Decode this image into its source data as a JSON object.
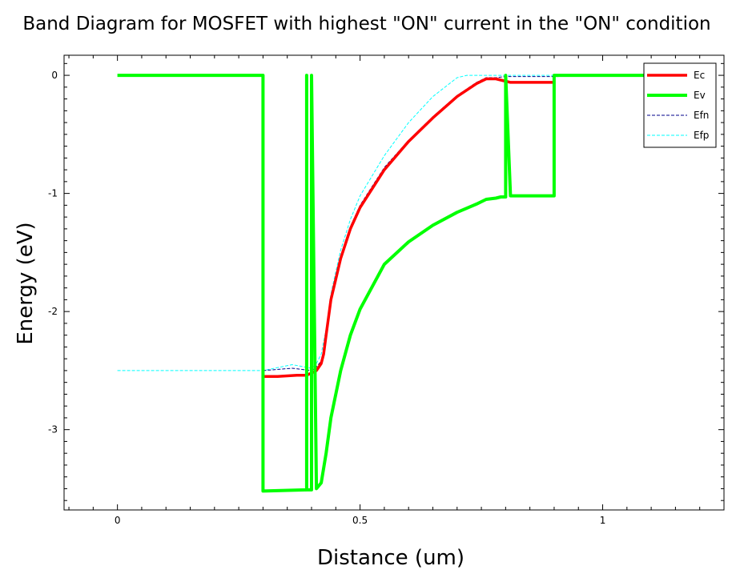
{
  "chart_data": {
    "type": "line",
    "title": "Band Diagram for MOSFET with highest \"ON\" current in the \"ON\" condition",
    "xlabel": "Distance (um)",
    "ylabel": "Energy (eV)",
    "xlim": [
      -0.11,
      1.25
    ],
    "ylim": [
      -3.68,
      0.17
    ],
    "xticks": [
      0,
      0.5,
      1
    ],
    "xtick_labels": [
      "0",
      "0.5",
      "1"
    ],
    "yticks": [
      0,
      -1,
      -2,
      -3
    ],
    "ytick_labels": [
      "0",
      "-1",
      "-2",
      "-3"
    ],
    "grid": false,
    "legend_position": "top-right",
    "series": [
      {
        "name": "Ec",
        "color": "#ff0000",
        "style": "solid",
        "x": [
          0.3,
          0.33,
          0.37,
          0.39,
          0.41,
          0.42,
          0.425,
          0.43,
          0.44,
          0.46,
          0.48,
          0.5,
          0.55,
          0.6,
          0.65,
          0.7,
          0.74,
          0.76,
          0.78,
          0.8,
          0.81,
          0.85,
          0.9
        ],
        "y": [
          -2.55,
          -2.55,
          -2.54,
          -2.54,
          -2.5,
          -2.44,
          -2.36,
          -2.2,
          -1.9,
          -1.55,
          -1.3,
          -1.12,
          -0.8,
          -0.56,
          -0.36,
          -0.18,
          -0.07,
          -0.03,
          -0.03,
          -0.05,
          -0.06,
          -0.06,
          -0.06
        ]
      },
      {
        "name": "Ev",
        "color": "#00ff00",
        "style": "solid",
        "x": [
          0,
          0.3,
          0.3,
          0.39,
          0.39,
          0.39,
          0.4,
          0.4,
          0.41,
          0.42,
          0.43,
          0.44,
          0.46,
          0.48,
          0.5,
          0.55,
          0.6,
          0.65,
          0.7,
          0.74,
          0.76,
          0.78,
          0.79,
          0.8,
          0.8,
          0.81,
          0.81,
          0.81,
          0.9,
          0.9,
          1.1
        ],
        "y": [
          0,
          0,
          -3.52,
          -3.51,
          0,
          -3.51,
          -3.51,
          0,
          -3.5,
          -3.45,
          -3.2,
          -2.9,
          -2.5,
          -2.2,
          -1.98,
          -1.6,
          -1.41,
          -1.27,
          -1.16,
          -1.09,
          -1.05,
          -1.04,
          -1.03,
          -1.03,
          0,
          -1.02,
          -1.02,
          -1.02,
          -1.02,
          0,
          0
        ]
      },
      {
        "name": "Efn",
        "color": "#00008b",
        "style": "dashed",
        "x": [
          0.3,
          0.36,
          0.4,
          0.41,
          0.42,
          0.425,
          0.43,
          0.44,
          0.46,
          0.48,
          0.5,
          0.55,
          0.6,
          0.65,
          0.7,
          0.74,
          0.76,
          0.78,
          0.8,
          0.9,
          1.1
        ],
        "y": [
          -2.5,
          -2.48,
          -2.5,
          -2.47,
          -2.42,
          -2.34,
          -2.18,
          -1.88,
          -1.53,
          -1.28,
          -1.1,
          -0.78,
          -0.55,
          -0.35,
          -0.17,
          -0.06,
          -0.02,
          -0.02,
          -0.01,
          -0.01,
          0
        ]
      },
      {
        "name": "Efp",
        "color": "#00ffff",
        "style": "dashed",
        "x": [
          0,
          0.3,
          0.36,
          0.4,
          0.41,
          0.42,
          0.43,
          0.44,
          0.46,
          0.48,
          0.5,
          0.55,
          0.6,
          0.65,
          0.7,
          0.72,
          0.8,
          1.1
        ],
        "y": [
          -2.5,
          -2.5,
          -2.45,
          -2.48,
          -2.44,
          -2.36,
          -2.15,
          -1.85,
          -1.48,
          -1.22,
          -1.02,
          -0.68,
          -0.4,
          -0.18,
          -0.02,
          0,
          0,
          0
        ]
      }
    ]
  }
}
